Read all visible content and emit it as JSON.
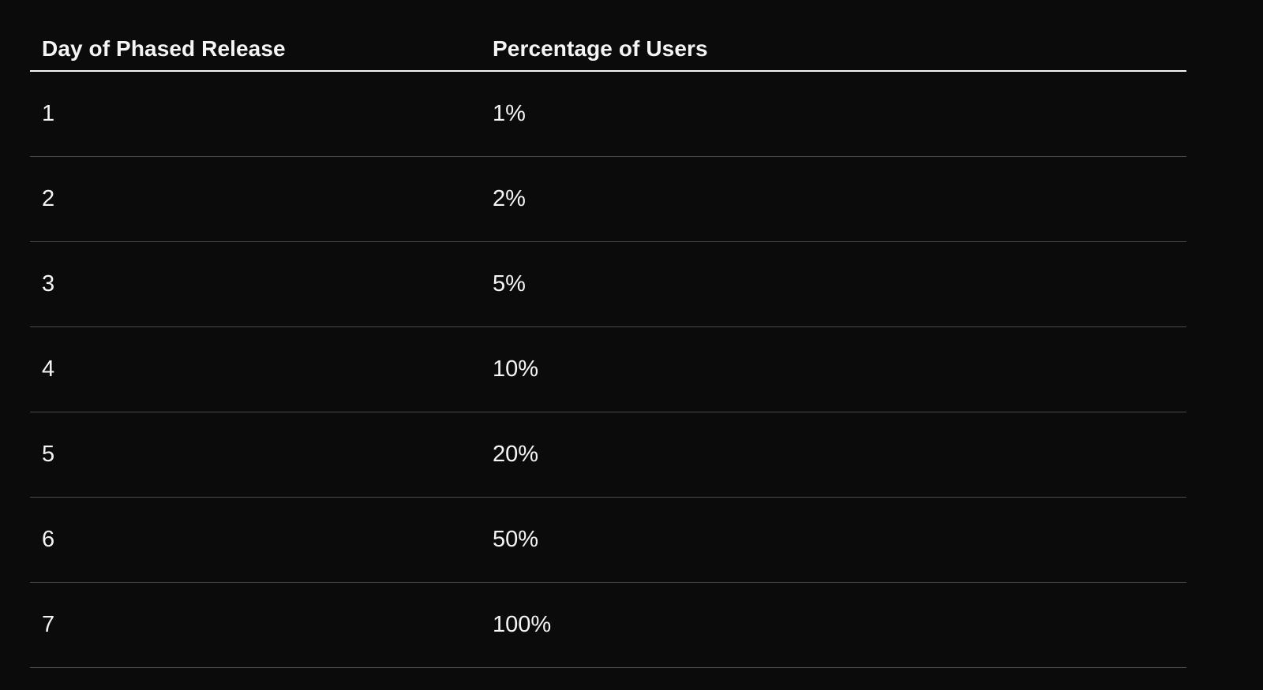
{
  "table": {
    "headers": {
      "day": "Day of Phased Release",
      "percentage": "Percentage of Users"
    },
    "rows": [
      {
        "day": "1",
        "percentage": "1%"
      },
      {
        "day": "2",
        "percentage": "2%"
      },
      {
        "day": "3",
        "percentage": "5%"
      },
      {
        "day": "4",
        "percentage": "10%"
      },
      {
        "day": "5",
        "percentage": "20%"
      },
      {
        "day": "6",
        "percentage": "50%"
      },
      {
        "day": "7",
        "percentage": "100%"
      }
    ]
  },
  "colors": {
    "background": "#0b0b0b",
    "text": "#f5f5f7",
    "header_rule": "#f5f5f7",
    "row_rule": "#4a4a4c"
  }
}
